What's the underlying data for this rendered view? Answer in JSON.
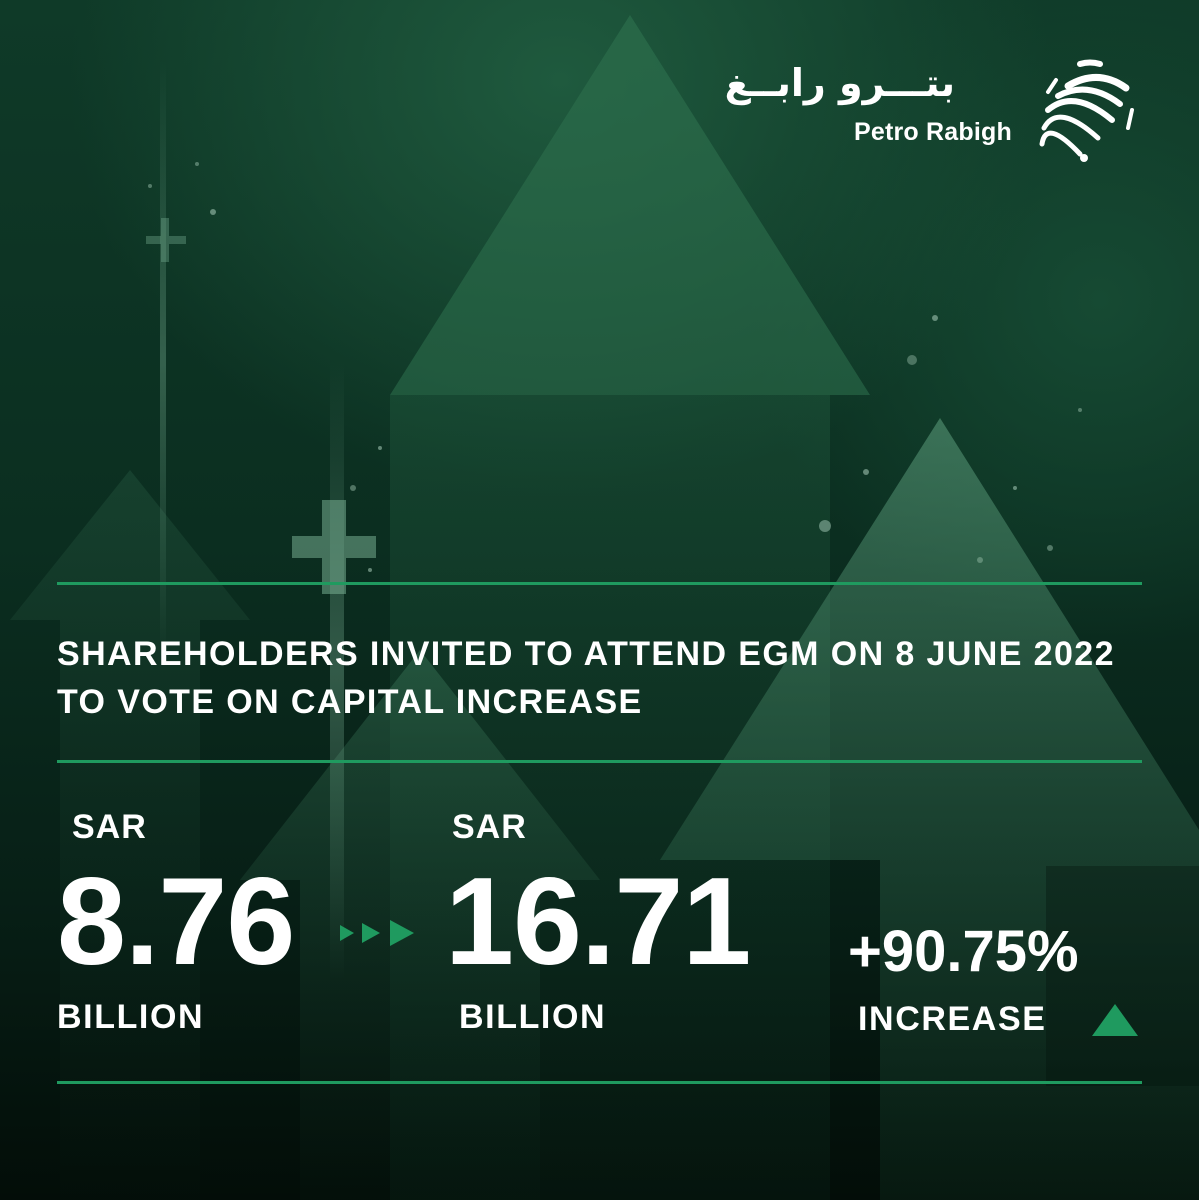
{
  "brand": {
    "name_arabic": "بتـــرو رابــغ",
    "name_latin": "Petro Rabigh",
    "logo_icon": "sunburst-logo-icon"
  },
  "headline": "SHAREHOLDERS INVITED TO ATTEND EGM ON 8 JUNE 2022 TO VOTE ON CAPITAL INCREASE",
  "capital": {
    "before": {
      "currency": "SAR",
      "value": "8.76",
      "unit": "BILLION"
    },
    "after": {
      "currency": "SAR",
      "value": "16.71",
      "unit": "BILLION"
    },
    "change": {
      "value": "+90.75%",
      "label": "INCREASE"
    }
  },
  "icons": {
    "transition": "double-arrow-right-icon",
    "trend": "triangle-up-icon"
  },
  "colors": {
    "accent": "#1f9a5f",
    "background": "#0b2e20",
    "text": "#ffffff"
  }
}
